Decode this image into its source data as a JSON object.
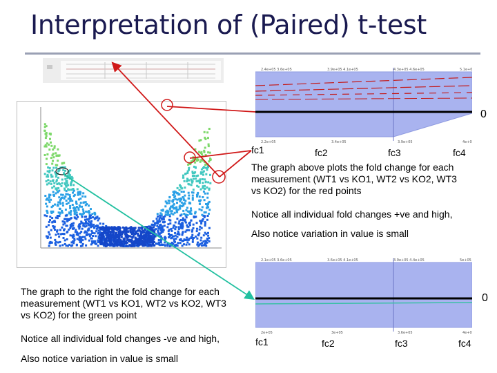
{
  "title": "Interpretation of (Paired) t-test",
  "upper": {
    "zero_label": "0",
    "fc_labels": [
      "fc1",
      "fc2",
      "fc3",
      "fc4"
    ],
    "paragraph": [
      "The graph above plots the fold change for each",
      "measurement (WT1 vs KO1, WT2 vs KO2, WT3",
      "vs KO2) for the red points"
    ],
    "notice": "Notice all individual fold changes +ve and high,",
    "variation": "Also notice variation in value is small"
  },
  "lower": {
    "zero_label": "0",
    "fc_labels": [
      "fc1",
      "fc2",
      "fc3",
      "fc4"
    ],
    "paragraph": [
      "The graph to the right the fold change for each",
      "measurement (WT1 vs KO1, WT2 vs KO2, WT3",
      "vs KO2) for the green point"
    ],
    "notice": "Notice all individual fold changes -ve and high,",
    "variation": "Also notice variation in value is small"
  },
  "colors": {
    "title": "#1a1a50",
    "band_fill": "#a9b3ef",
    "red_arrow": "#d01818",
    "green_arrow": "#22c0a0",
    "red_series": "#c41a1a",
    "green_series": "#3bc0a6"
  },
  "icons": {
    "red_marker": "red-circle-marker-icon",
    "green_marker": "green-oval-marker-icon"
  }
}
